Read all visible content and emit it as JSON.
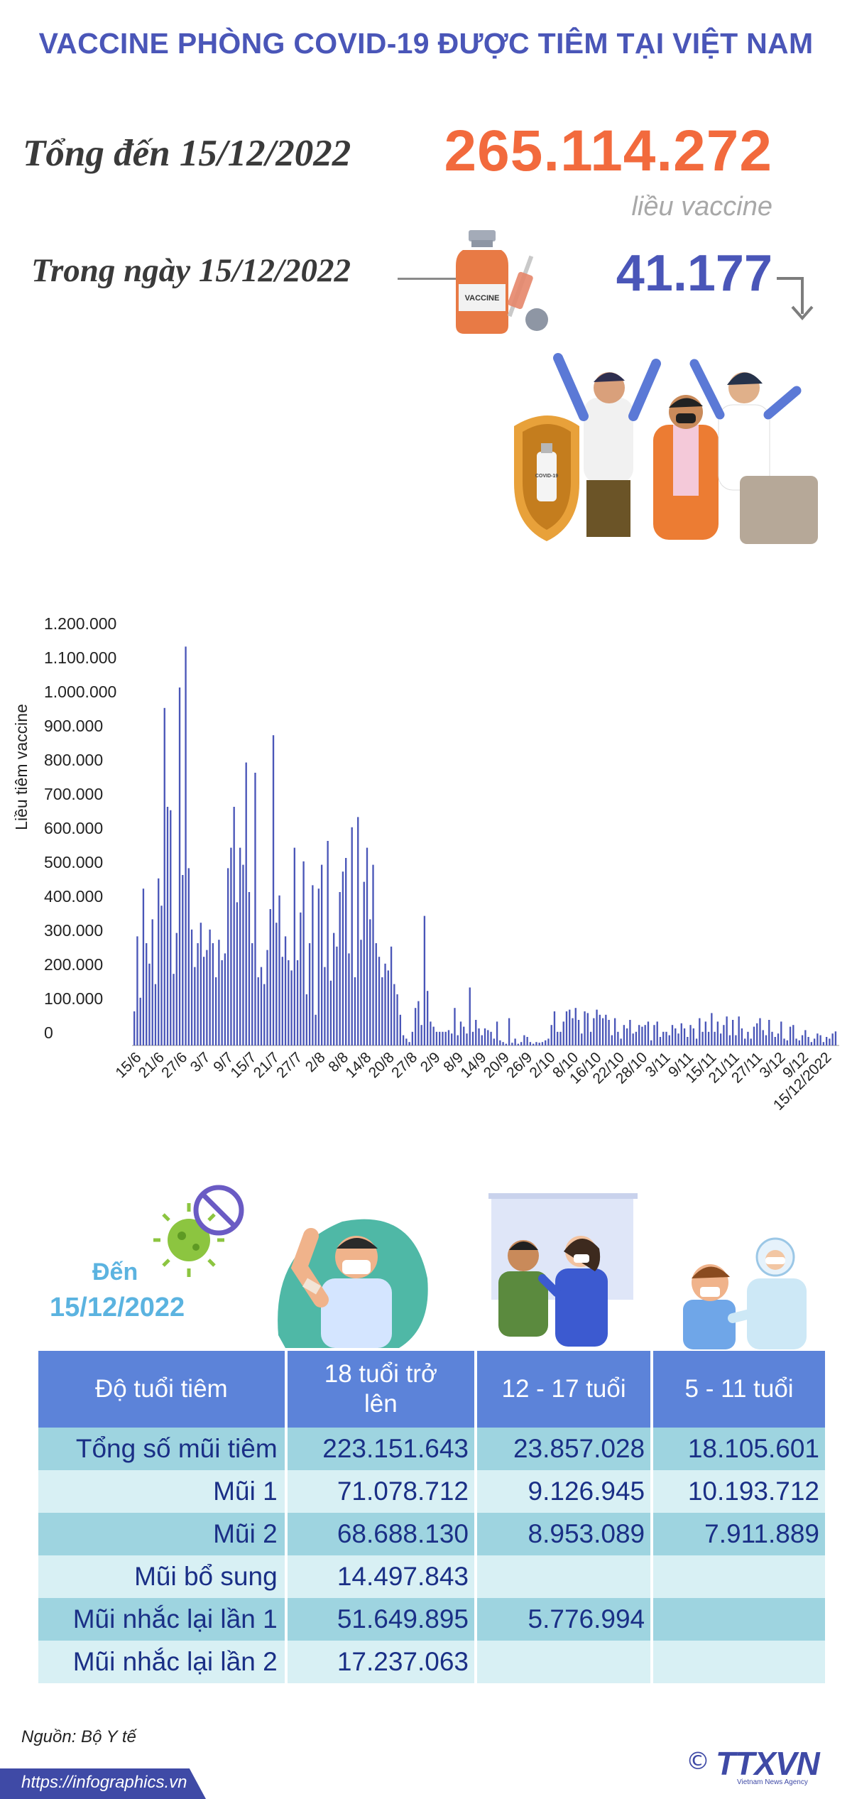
{
  "header": {
    "title": "VACCINE PHÒNG COVID-19 ĐƯỢC TIÊM TẠI VIỆT NAM",
    "total_label": "Tổng đến 15/12/2022",
    "total_value": "265.114.272",
    "dose_unit": "liều vaccine",
    "day_label": "Trong ngày 15/12/2022",
    "day_value": "41.177",
    "vial_label": "VACCINE",
    "shield_label": "COVID-19"
  },
  "colors": {
    "title": "#4a56b8",
    "total": "#f26a3d",
    "bar": "#4a56b8",
    "table_header": "#5c83d9",
    "row_dark": "#9ed4e0",
    "row_light": "#d8f0f4",
    "table_text": "#1a2f86",
    "section_label": "#5bb3e0"
  },
  "chart_data": {
    "type": "bar",
    "ylabel": "Liều tiêm vaccine",
    "ylim": [
      0,
      1200000
    ],
    "ytick_values": [
      0,
      100000,
      200000,
      300000,
      400000,
      500000,
      600000,
      700000,
      800000,
      900000,
      1000000,
      1100000,
      1200000
    ],
    "ytick_labels": [
      "0",
      "100.000",
      "200.000",
      "300.000",
      "400.000",
      "500.000",
      "600.000",
      "700.000",
      "800.000",
      "900.000",
      "1.000.000",
      "1.100.000",
      "1.200.000"
    ],
    "xtick_labels": [
      "15/6",
      "21/6",
      "27/6",
      "3/7",
      "9/7",
      "15/7",
      "21/7",
      "27/7",
      "2/8",
      "8/8",
      "14/8",
      "20/8",
      "27/8",
      "2/9",
      "8/9",
      "14/9",
      "20/9",
      "26/9",
      "2/10",
      "8/10",
      "16/10",
      "22/10",
      "28/10",
      "3/11",
      "9/11",
      "15/11",
      "21/11",
      "27/11",
      "3/12",
      "9/12",
      "15/12/2022"
    ],
    "values": [
      100000,
      320000,
      140000,
      460000,
      300000,
      240000,
      370000,
      180000,
      490000,
      410000,
      990000,
      700000,
      690000,
      210000,
      330000,
      1050000,
      500000,
      1170000,
      520000,
      340000,
      230000,
      300000,
      360000,
      260000,
      280000,
      340000,
      300000,
      200000,
      310000,
      250000,
      270000,
      520000,
      580000,
      700000,
      420000,
      580000,
      530000,
      830000,
      450000,
      300000,
      800000,
      200000,
      230000,
      180000,
      280000,
      400000,
      910000,
      360000,
      440000,
      260000,
      320000,
      250000,
      220000,
      580000,
      250000,
      390000,
      540000,
      150000,
      300000,
      470000,
      90000,
      460000,
      530000,
      230000,
      600000,
      190000,
      330000,
      290000,
      450000,
      510000,
      550000,
      270000,
      640000,
      200000,
      670000,
      310000,
      480000,
      580000,
      370000,
      530000,
      300000,
      260000,
      200000,
      240000,
      220000,
      290000,
      180000,
      150000,
      90000,
      30000,
      20000,
      10000,
      40000,
      110000,
      130000,
      60000,
      380000,
      160000,
      70000,
      55000,
      40000,
      40000,
      40000,
      40000,
      45000,
      35000,
      110000,
      30000,
      70000,
      55000,
      35000,
      170000,
      40000,
      75000,
      50000,
      30000,
      50000,
      45000,
      40000,
      20000,
      70000,
      15000,
      10000,
      5000,
      80000,
      8000,
      20000,
      5000,
      10000,
      30000,
      25000,
      10000,
      5000,
      10000,
      8000,
      10000,
      15000,
      20000,
      60000,
      100000,
      40000,
      40000,
      70000,
      100000,
      105000,
      80000,
      110000,
      75000,
      35000,
      100000,
      95000,
      40000,
      80000,
      105000,
      90000,
      80000,
      90000,
      75000,
      30000,
      80000,
      40000,
      20000,
      60000,
      50000,
      75000,
      35000,
      40000,
      60000,
      55000,
      60000,
      70000,
      15000,
      60000,
      70000,
      25000,
      40000,
      40000,
      30000,
      60000,
      50000,
      35000,
      65000,
      50000,
      25000,
      60000,
      50000,
      20000,
      80000,
      40000,
      70000,
      40000,
      95000,
      40000,
      70000,
      35000,
      60000,
      85000,
      30000,
      75000,
      30000,
      85000,
      50000,
      20000,
      40000,
      20000,
      55000,
      65000,
      80000,
      45000,
      30000,
      75000,
      40000,
      25000,
      35000,
      70000,
      20000,
      15000,
      55000,
      60000,
      20000,
      15000,
      30000,
      45000,
      25000,
      10000,
      20000,
      35000,
      30000,
      10000,
      25000,
      20000,
      35000,
      41177
    ]
  },
  "section": {
    "label_line1": "Đến",
    "label_line2": "15/12/2022"
  },
  "table": {
    "headers": [
      "Độ tuổi tiêm",
      "18 tuổi trở lên",
      "12 - 17 tuổi",
      "5 - 11 tuổi"
    ],
    "rows": [
      {
        "label": "Tổng số mũi tiêm",
        "cells": [
          "223.151.643",
          "23.857.028",
          "18.105.601"
        ]
      },
      {
        "label": "Mũi 1",
        "cells": [
          "71.078.712",
          "9.126.945",
          "10.193.712"
        ]
      },
      {
        "label": "Mũi 2",
        "cells": [
          "68.688.130",
          "8.953.089",
          "7.911.889"
        ]
      },
      {
        "label": "Mũi bổ sung",
        "cells": [
          "14.497.843",
          "",
          ""
        ]
      },
      {
        "label": "Mũi nhắc lại lần 1",
        "cells": [
          "51.649.895",
          "5.776.994",
          ""
        ]
      },
      {
        "label": "Mũi nhắc lại lần 2",
        "cells": [
          "17.237.063",
          "",
          ""
        ]
      }
    ]
  },
  "footer": {
    "source": "Nguồn: Bộ Y tế",
    "url": "https://infographics.vn",
    "copyright": "©",
    "logo": "TTXVN",
    "logo_sub": "Vietnam News Agency"
  }
}
